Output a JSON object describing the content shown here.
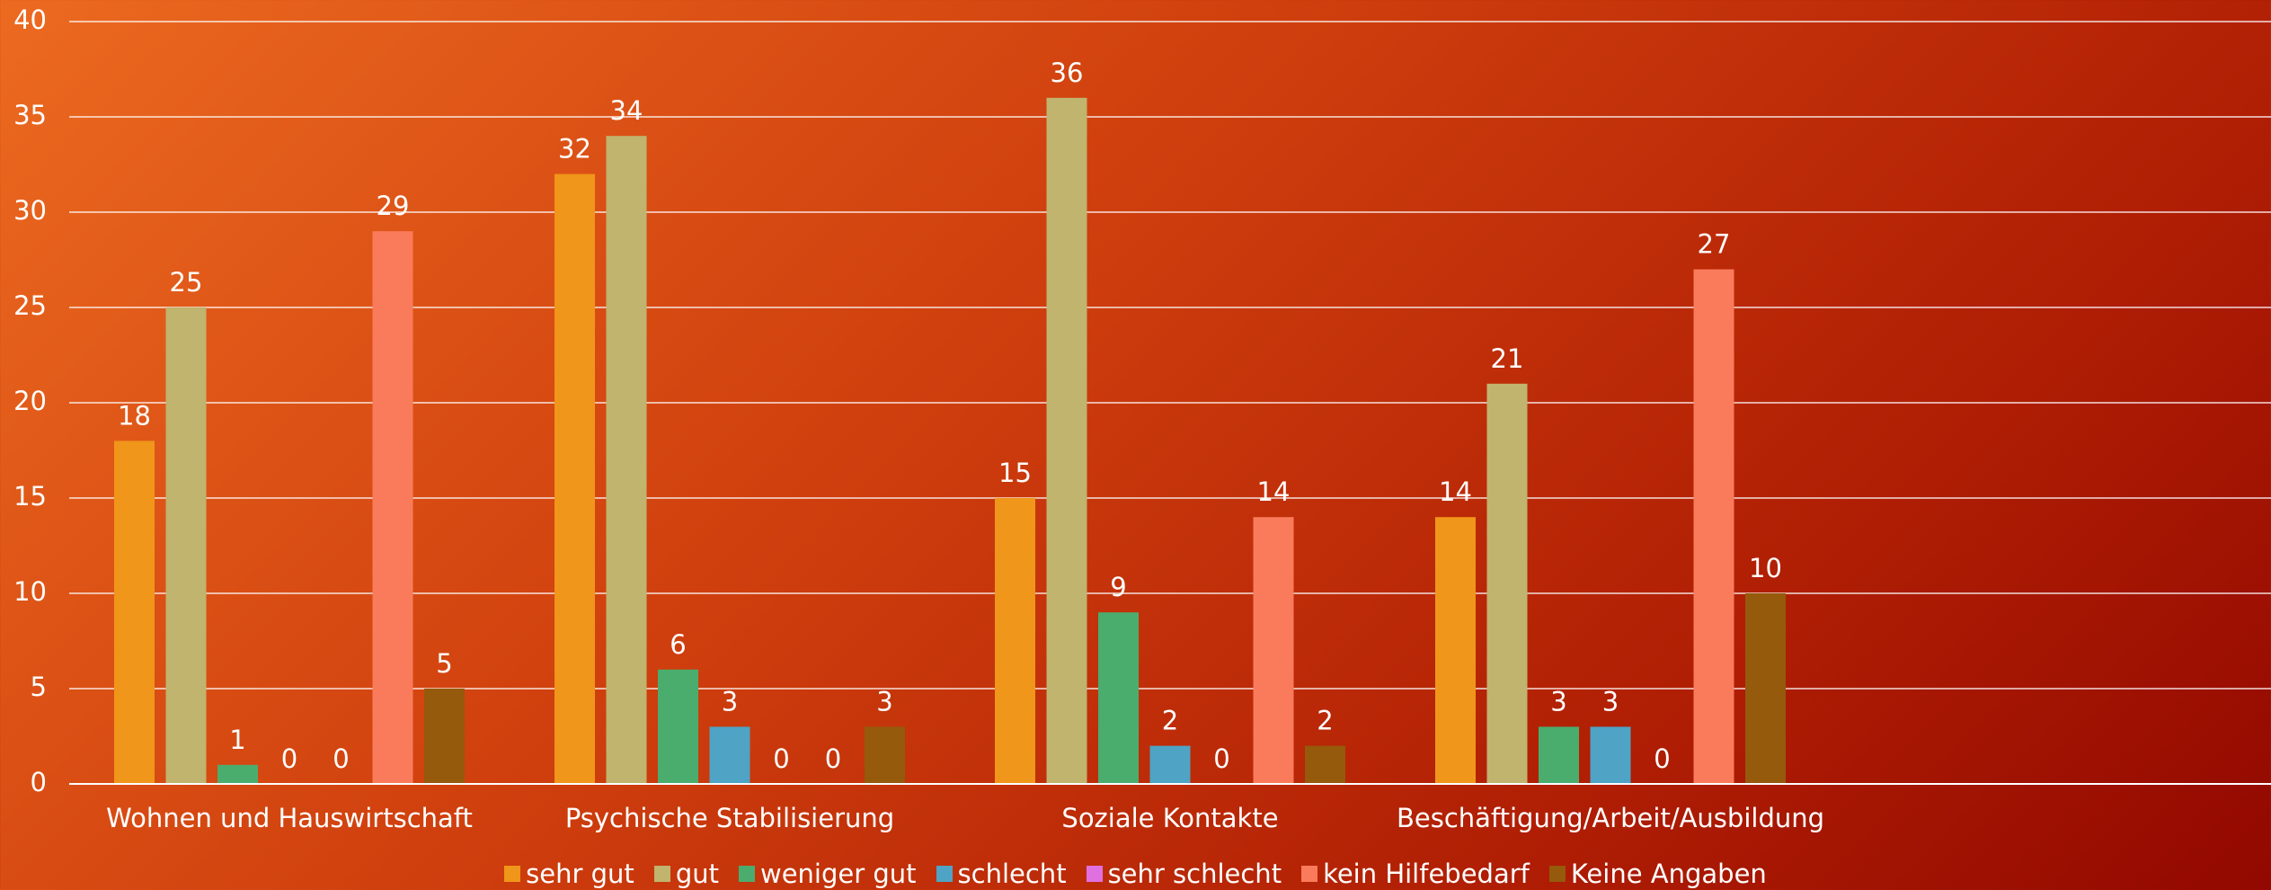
{
  "chart_data": {
    "type": "bar",
    "categories": [
      "Wohnen und Hauswirtschaft",
      "Psychische Stabilisierung",
      "Soziale Kontakte",
      "Beschäftigung/Arbeit/Ausbildung"
    ],
    "series": [
      {
        "name": "sehr gut",
        "color": "#f0961a",
        "values": [
          18,
          32,
          15,
          14
        ]
      },
      {
        "name": "gut",
        "color": "#c0b46e",
        "values": [
          25,
          34,
          36,
          21
        ]
      },
      {
        "name": "weniger gut",
        "color": "#4aad6e",
        "values": [
          1,
          6,
          9,
          3
        ]
      },
      {
        "name": "schlecht",
        "color": "#4fa3c4",
        "values": [
          0,
          3,
          2,
          3
        ]
      },
      {
        "name": "sehr schlecht",
        "color": "#e070e0",
        "values": [
          0,
          0,
          0,
          0
        ]
      },
      {
        "name": "kein Hilfebedarf",
        "color": "#fa7b5b",
        "values": [
          29,
          0,
          14,
          27
        ]
      },
      {
        "name": "Keine Angaben",
        "color": "#955a0c",
        "values": [
          5,
          3,
          2,
          10
        ]
      }
    ],
    "ylim": [
      0,
      40
    ],
    "yticks": [
      0,
      5,
      10,
      15,
      20,
      25,
      30,
      35,
      40
    ],
    "grid": true,
    "legend": "bottom"
  }
}
